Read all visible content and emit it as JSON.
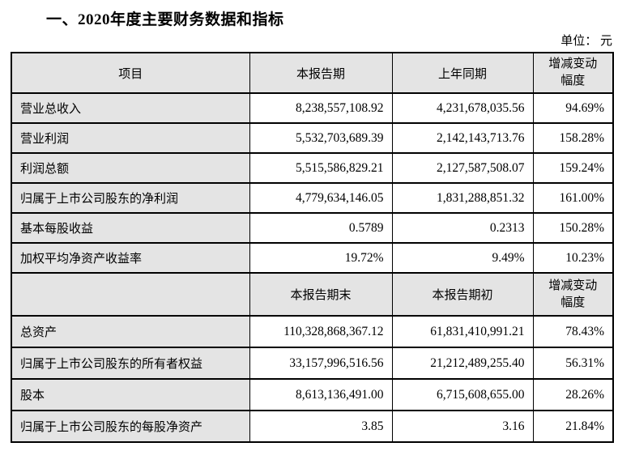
{
  "page": {
    "title": "一、2020年度主要财务数据和指标",
    "unit_label": "单位： 元"
  },
  "colors": {
    "header_bg": "#e4e4e4",
    "border": "#000000",
    "text": "#000000"
  },
  "table": {
    "section1": {
      "headers": [
        "项目",
        "本报告期",
        "上年同期",
        "增减变动幅度"
      ],
      "rows": [
        {
          "label": "营业总收入",
          "current": "8,238,557,108.92",
          "prior": "4,231,678,035.56",
          "change": "94.69%"
        },
        {
          "label": "营业利润",
          "current": "5,532,703,689.39",
          "prior": "2,142,143,713.76",
          "change": "158.28%"
        },
        {
          "label": "利润总额",
          "current": "5,515,586,829.21",
          "prior": "2,127,587,508.07",
          "change": "159.24%"
        },
        {
          "label": "归属于上市公司股东的净利润",
          "current": "4,779,634,146.05",
          "prior": "1,831,288,851.32",
          "change": "161.00%"
        },
        {
          "label": "基本每股收益",
          "current": "0.5789",
          "prior": "0.2313",
          "change": "150.28%"
        },
        {
          "label": "加权平均净资产收益率",
          "current": "19.72%",
          "prior": "9.49%",
          "change": "10.23%"
        }
      ]
    },
    "section2": {
      "headers": [
        "",
        "本报告期末",
        "本报告期初",
        "增减变动幅度"
      ],
      "rows": [
        {
          "label": "总资产",
          "current": "110,328,868,367.12",
          "prior": "61,831,410,991.21",
          "change": "78.43%"
        },
        {
          "label": "归属于上市公司股东的所有者权益",
          "current": "33,157,996,516.56",
          "prior": "21,212,489,255.40",
          "change": "56.31%"
        },
        {
          "label": "股本",
          "current": "8,613,136,491.00",
          "prior": "6,715,608,655.00",
          "change": "28.26%"
        },
        {
          "label": "归属于上市公司股东的每股净资产",
          "current": "3.85",
          "prior": "3.16",
          "change": "21.84%"
        }
      ]
    }
  }
}
